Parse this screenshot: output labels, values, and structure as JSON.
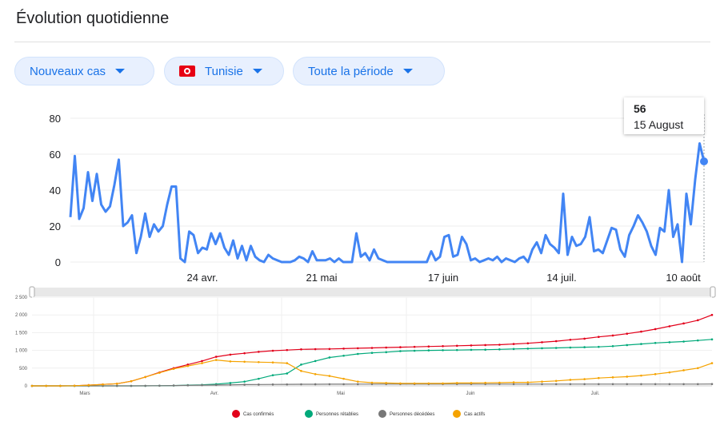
{
  "header": {
    "title": "Évolution quotidienne"
  },
  "filters": [
    {
      "label": "Nouveaux cas",
      "flag": false
    },
    {
      "label": "Tunisie",
      "flag": true
    },
    {
      "label": "Toute la période",
      "flag": false
    }
  ],
  "tooltip": {
    "value": "56",
    "date": "15 August"
  },
  "chart_data": [
    {
      "type": "line",
      "title": "",
      "ylim": [
        0,
        80
      ],
      "yticks": [
        0,
        20,
        40,
        60,
        80
      ],
      "x_tick_labels": [
        "24 avr.",
        "21 mai",
        "17 juin",
        "14 juil.",
        "10 août"
      ],
      "color": "#4285f4",
      "grid": true,
      "series": [
        {
          "values": [
            25,
            59,
            24,
            30,
            50,
            34,
            49,
            32,
            28,
            31,
            43,
            57,
            20,
            22,
            26,
            5,
            14,
            27,
            14,
            21,
            17,
            20,
            32,
            42,
            42,
            2,
            0,
            17,
            15,
            5,
            8,
            7,
            16,
            10,
            16,
            8,
            4,
            12,
            2,
            9,
            1,
            9,
            3,
            1,
            0,
            4,
            2,
            1,
            0,
            0,
            0,
            1,
            3,
            2,
            0,
            6,
            1,
            1,
            1,
            2,
            0,
            2,
            0,
            0,
            0,
            16,
            3,
            5,
            1,
            7,
            2,
            1,
            0,
            0,
            0,
            0,
            0,
            0,
            0,
            0,
            0,
            0,
            6,
            1,
            3,
            14,
            15,
            3,
            4,
            14,
            10,
            1,
            2,
            0,
            1,
            2,
            1,
            3,
            0,
            2,
            1,
            0,
            2,
            3,
            0,
            7,
            11,
            5,
            15,
            10,
            8,
            5,
            38,
            4,
            14,
            9,
            10,
            14,
            25,
            6,
            7,
            5,
            12,
            19,
            18,
            7,
            3,
            15,
            20,
            26,
            22,
            17,
            9,
            4,
            19,
            17,
            40,
            14,
            21,
            0,
            38,
            21,
            46,
            66,
            56
          ]
        }
      ]
    },
    {
      "type": "line",
      "title": "",
      "ylim": [
        0,
        2500
      ],
      "yticks": [
        "0",
        "500",
        "1 000",
        "1 500",
        "2 000",
        "2 500"
      ],
      "x_tick_labels": [
        "Mars",
        "Avr.",
        "Mai",
        "Juin",
        "Juil."
      ],
      "legend_position": "bottom",
      "series": [
        {
          "name": "Cas confirmés",
          "color": "#e2001a",
          "values": [
            0,
            0,
            0,
            5,
            20,
            40,
            60,
            130,
            250,
            380,
            500,
            600,
            700,
            820,
            880,
            920,
            960,
            990,
            1010,
            1030,
            1035,
            1040,
            1050,
            1060,
            1070,
            1080,
            1090,
            1100,
            1110,
            1120,
            1130,
            1140,
            1150,
            1160,
            1180,
            1200,
            1230,
            1260,
            1300,
            1330,
            1380,
            1420,
            1470,
            1530,
            1600,
            1680,
            1760,
            1850,
            2000
          ]
        },
        {
          "name": "Personnes rétablies",
          "color": "#00a97a",
          "values": [
            0,
            0,
            0,
            0,
            0,
            0,
            0,
            0,
            0,
            5,
            10,
            20,
            30,
            50,
            80,
            120,
            200,
            300,
            350,
            600,
            700,
            800,
            850,
            900,
            930,
            950,
            980,
            990,
            1000,
            1005,
            1010,
            1015,
            1020,
            1030,
            1040,
            1050,
            1060,
            1070,
            1080,
            1090,
            1100,
            1120,
            1150,
            1180,
            1210,
            1230,
            1250,
            1280,
            1310
          ]
        },
        {
          "name": "Personnes décédées",
          "color": "#777777",
          "values": [
            0,
            0,
            0,
            0,
            0,
            0,
            0,
            0,
            2,
            5,
            10,
            15,
            20,
            25,
            30,
            35,
            38,
            40,
            42,
            45,
            46,
            47,
            48,
            49,
            50,
            50,
            50,
            50,
            50,
            50,
            50,
            50,
            50,
            50,
            50,
            50,
            50,
            50,
            50,
            50,
            50,
            50,
            50,
            50,
            50,
            50,
            50,
            50,
            51
          ]
        },
        {
          "name": "Cas actifs",
          "color": "#f5a300",
          "values": [
            0,
            0,
            0,
            5,
            20,
            40,
            60,
            130,
            250,
            370,
            480,
            560,
            640,
            730,
            690,
            680,
            670,
            660,
            640,
            420,
            330,
            280,
            200,
            120,
            90,
            80,
            70,
            70,
            70,
            70,
            80,
            80,
            85,
            90,
            100,
            100,
            120,
            140,
            170,
            190,
            220,
            240,
            260,
            290,
            330,
            380,
            440,
            500,
            640
          ]
        }
      ]
    }
  ]
}
